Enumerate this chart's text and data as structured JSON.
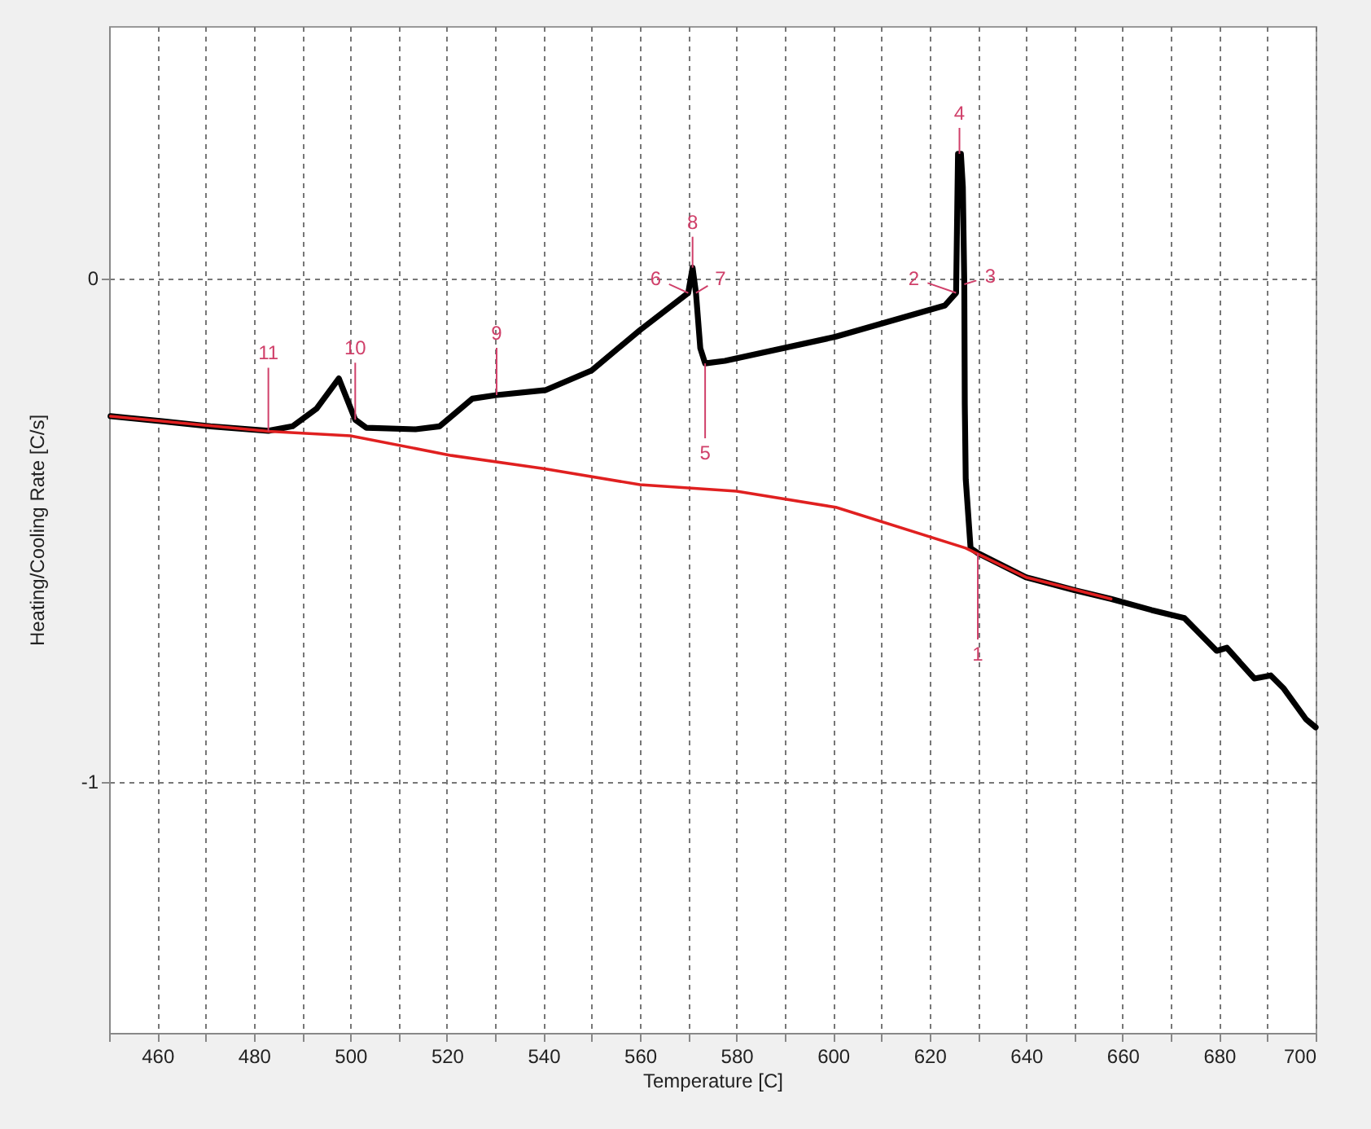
{
  "chart_data": {
    "type": "line",
    "xlabel": "Temperature [C]",
    "ylabel": "Heating/Cooling Rate [C/s]",
    "xlim": [
      450,
      700
    ],
    "ylim": [
      -1.5,
      0.5
    ],
    "xticks": [
      {
        "value": 450,
        "label": null
      },
      460,
      {
        "value": 470,
        "label": null
      },
      480,
      {
        "value": 490,
        "label": null
      },
      500,
      {
        "value": 510,
        "label": null
      },
      520,
      {
        "value": 530,
        "label": null
      },
      540,
      {
        "value": 550,
        "label": null
      },
      560,
      {
        "value": 570,
        "label": null
      },
      580,
      {
        "value": 590,
        "label": null
      },
      600,
      {
        "value": 610,
        "label": null
      },
      620,
      {
        "value": 630,
        "label": null
      },
      640,
      {
        "value": 650,
        "label": null
      },
      660,
      {
        "value": 670,
        "label": null
      },
      680,
      {
        "value": 690,
        "label": null
      },
      700
    ],
    "yticks": [
      -1,
      0
    ],
    "grid": true,
    "marker": "none",
    "line_style": "solid",
    "series": [
      {
        "color": "#000000",
        "x": [
          450.3,
          461,
          471,
          483,
          488,
          493,
          497.6,
          501,
          503.3,
          513.5,
          518.5,
          525.3,
          530.3,
          540.5,
          550,
          560,
          570,
          570.9,
          571.6,
          572.5,
          573.5,
          577.6,
          600.6,
          623.2,
          625.5,
          625.9,
          626.5,
          626.9,
          627.2,
          627.3,
          627.5,
          628.5,
          630,
          640,
          650.2,
          657.6,
          666,
          672.8,
          679.5,
          681.6,
          687.3,
          690.7,
          693.4,
          698,
          700
        ],
        "values": [
          -0.275,
          -0.285,
          -0.295,
          -0.304,
          -0.295,
          -0.26,
          -0.2,
          -0.282,
          -0.298,
          -0.301,
          -0.295,
          -0.24,
          -0.233,
          -0.223,
          -0.184,
          -0.104,
          -0.03,
          0.02,
          -0.03,
          -0.14,
          -0.17,
          -0.165,
          -0.117,
          -0.055,
          -0.03,
          0.246,
          0.246,
          0.18,
          -0.013,
          -0.25,
          -0.4,
          -0.537,
          -0.547,
          -0.595,
          -0.621,
          -0.638,
          -0.66,
          -0.676,
          -0.741,
          -0.735,
          -0.796,
          -0.79,
          -0.816,
          -0.877,
          -0.893
        ]
      },
      {
        "color": "#e02020",
        "x": [
          450.3,
          483,
          500,
          520.9,
          540,
          560,
          580,
          600.6,
          627.5,
          640,
          657.6
        ],
        "values": [
          -0.275,
          -0.305,
          -0.314,
          -0.353,
          -0.379,
          -0.411,
          -0.424,
          -0.456,
          -0.537,
          -0.595,
          -0.638
        ]
      }
    ],
    "annotations": [
      {
        "text": "1",
        "x": 630,
        "y": -0.547
      },
      {
        "text": "2",
        "x": 625.5,
        "y": -0.03
      },
      {
        "text": "3",
        "x": 627.2,
        "y": -0.013
      },
      {
        "text": "4",
        "x": 626.2,
        "y": 0.246
      },
      {
        "text": "5",
        "x": 573.5,
        "y": -0.17
      },
      {
        "text": "6",
        "x": 570,
        "y": -0.03
      },
      {
        "text": "7",
        "x": 571.6,
        "y": -0.03
      },
      {
        "text": "8",
        "x": 570.9,
        "y": 0.02
      },
      {
        "text": "9",
        "x": 530.3,
        "y": -0.233
      },
      {
        "text": "10",
        "x": 501,
        "y": -0.282
      },
      {
        "text": "11",
        "x": 483,
        "y": -0.305
      }
    ]
  }
}
